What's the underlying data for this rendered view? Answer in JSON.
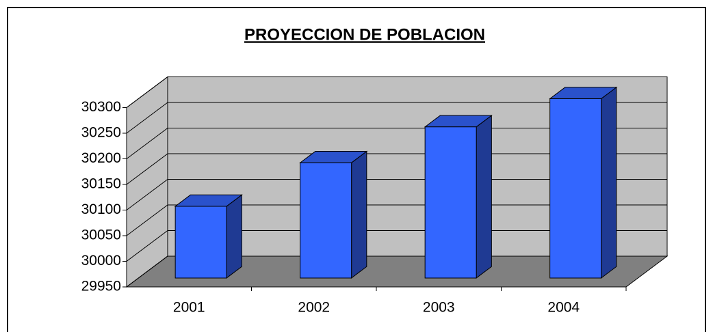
{
  "chart_data": {
    "type": "bar3d",
    "title": "PROYECCION DE POBLACION",
    "categories": [
      "2001",
      "2002",
      "2003",
      "2004"
    ],
    "values": [
      30090,
      30175,
      30245,
      30300
    ],
    "color": "#3366ff",
    "ylim": [
      29950,
      30300
    ],
    "yticks": [
      29950,
      30000,
      30050,
      30100,
      30150,
      30200,
      30250,
      30300
    ],
    "grid": true
  }
}
